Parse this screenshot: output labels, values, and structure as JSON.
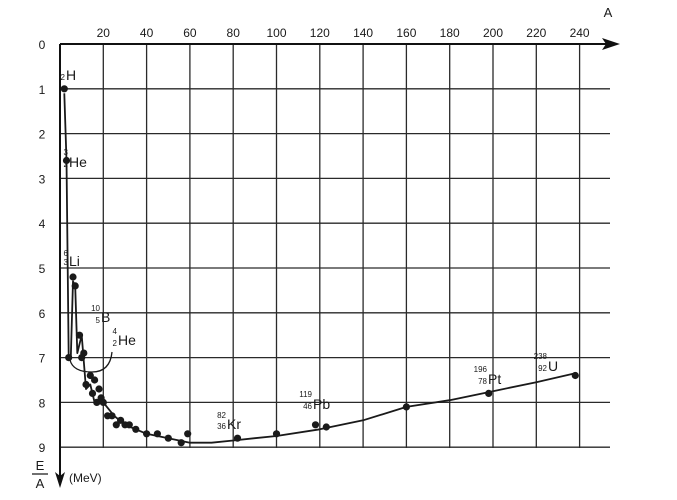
{
  "chart_data": {
    "type": "scatter",
    "title": "",
    "xlabel": "A",
    "ylabel_top": "E",
    "ylabel_bottom": "A",
    "yunit": "(MeV)",
    "xlim": [
      0,
      250
    ],
    "ylim": [
      0,
      9
    ],
    "y_inverted": true,
    "grid": true,
    "x_ticks": [
      "20",
      "40",
      "60",
      "80",
      "100",
      "120",
      "140",
      "160",
      "180",
      "200",
      "220",
      "240"
    ],
    "y_ticks": [
      "0",
      "1",
      "2",
      "3",
      "4",
      "5",
      "6",
      "7",
      "8",
      "9"
    ],
    "curve": {
      "x": [
        2,
        3,
        4,
        5,
        6,
        7,
        8,
        10,
        12,
        14,
        16,
        20,
        25,
        30,
        40,
        50,
        60,
        70,
        80,
        90,
        100,
        120,
        140,
        160,
        180,
        200,
        220,
        238
      ],
      "y": [
        1.1,
        2.6,
        7.0,
        7.0,
        5.3,
        5.4,
        6.9,
        6.5,
        7.7,
        7.6,
        8.0,
        8.0,
        8.3,
        8.5,
        8.7,
        8.8,
        8.9,
        8.9,
        8.85,
        8.8,
        8.75,
        8.6,
        8.4,
        8.1,
        7.95,
        7.75,
        7.55,
        7.35
      ]
    },
    "points": {
      "x": [
        2,
        3,
        4,
        6,
        7,
        9,
        10,
        11,
        12,
        14,
        15,
        16,
        17,
        18,
        19,
        20,
        22,
        24,
        26,
        28,
        30,
        32,
        35,
        40,
        45,
        50,
        56,
        59,
        82,
        100,
        118,
        123,
        160,
        198,
        238
      ],
      "y": [
        1.0,
        2.6,
        7.0,
        5.2,
        5.4,
        6.5,
        7.0,
        6.9,
        7.6,
        7.4,
        7.8,
        7.5,
        8.0,
        7.7,
        7.9,
        8.0,
        8.3,
        8.3,
        8.5,
        8.4,
        8.5,
        8.5,
        8.6,
        8.7,
        8.7,
        8.8,
        8.9,
        8.7,
        8.8,
        8.7,
        8.5,
        8.55,
        8.1,
        7.8,
        7.4
      ]
    },
    "annotations": [
      {
        "mass": "2",
        "atomic": "",
        "symbol": "H"
      },
      {
        "mass": "3",
        "atomic": "2",
        "symbol": "He"
      },
      {
        "mass": "6",
        "atomic": "3",
        "symbol": "Li"
      },
      {
        "mass": "10",
        "atomic": "5",
        "symbol": "B"
      },
      {
        "mass": "4",
        "atomic": "2",
        "symbol": "He"
      },
      {
        "mass": "82",
        "atomic": "36",
        "symbol": "Kr"
      },
      {
        "mass": "119",
        "atomic": "46",
        "symbol": "Pb"
      },
      {
        "mass": "196",
        "atomic": "78",
        "symbol": "Pt"
      },
      {
        "mass": "238",
        "atomic": "92",
        "symbol": "U"
      }
    ]
  }
}
